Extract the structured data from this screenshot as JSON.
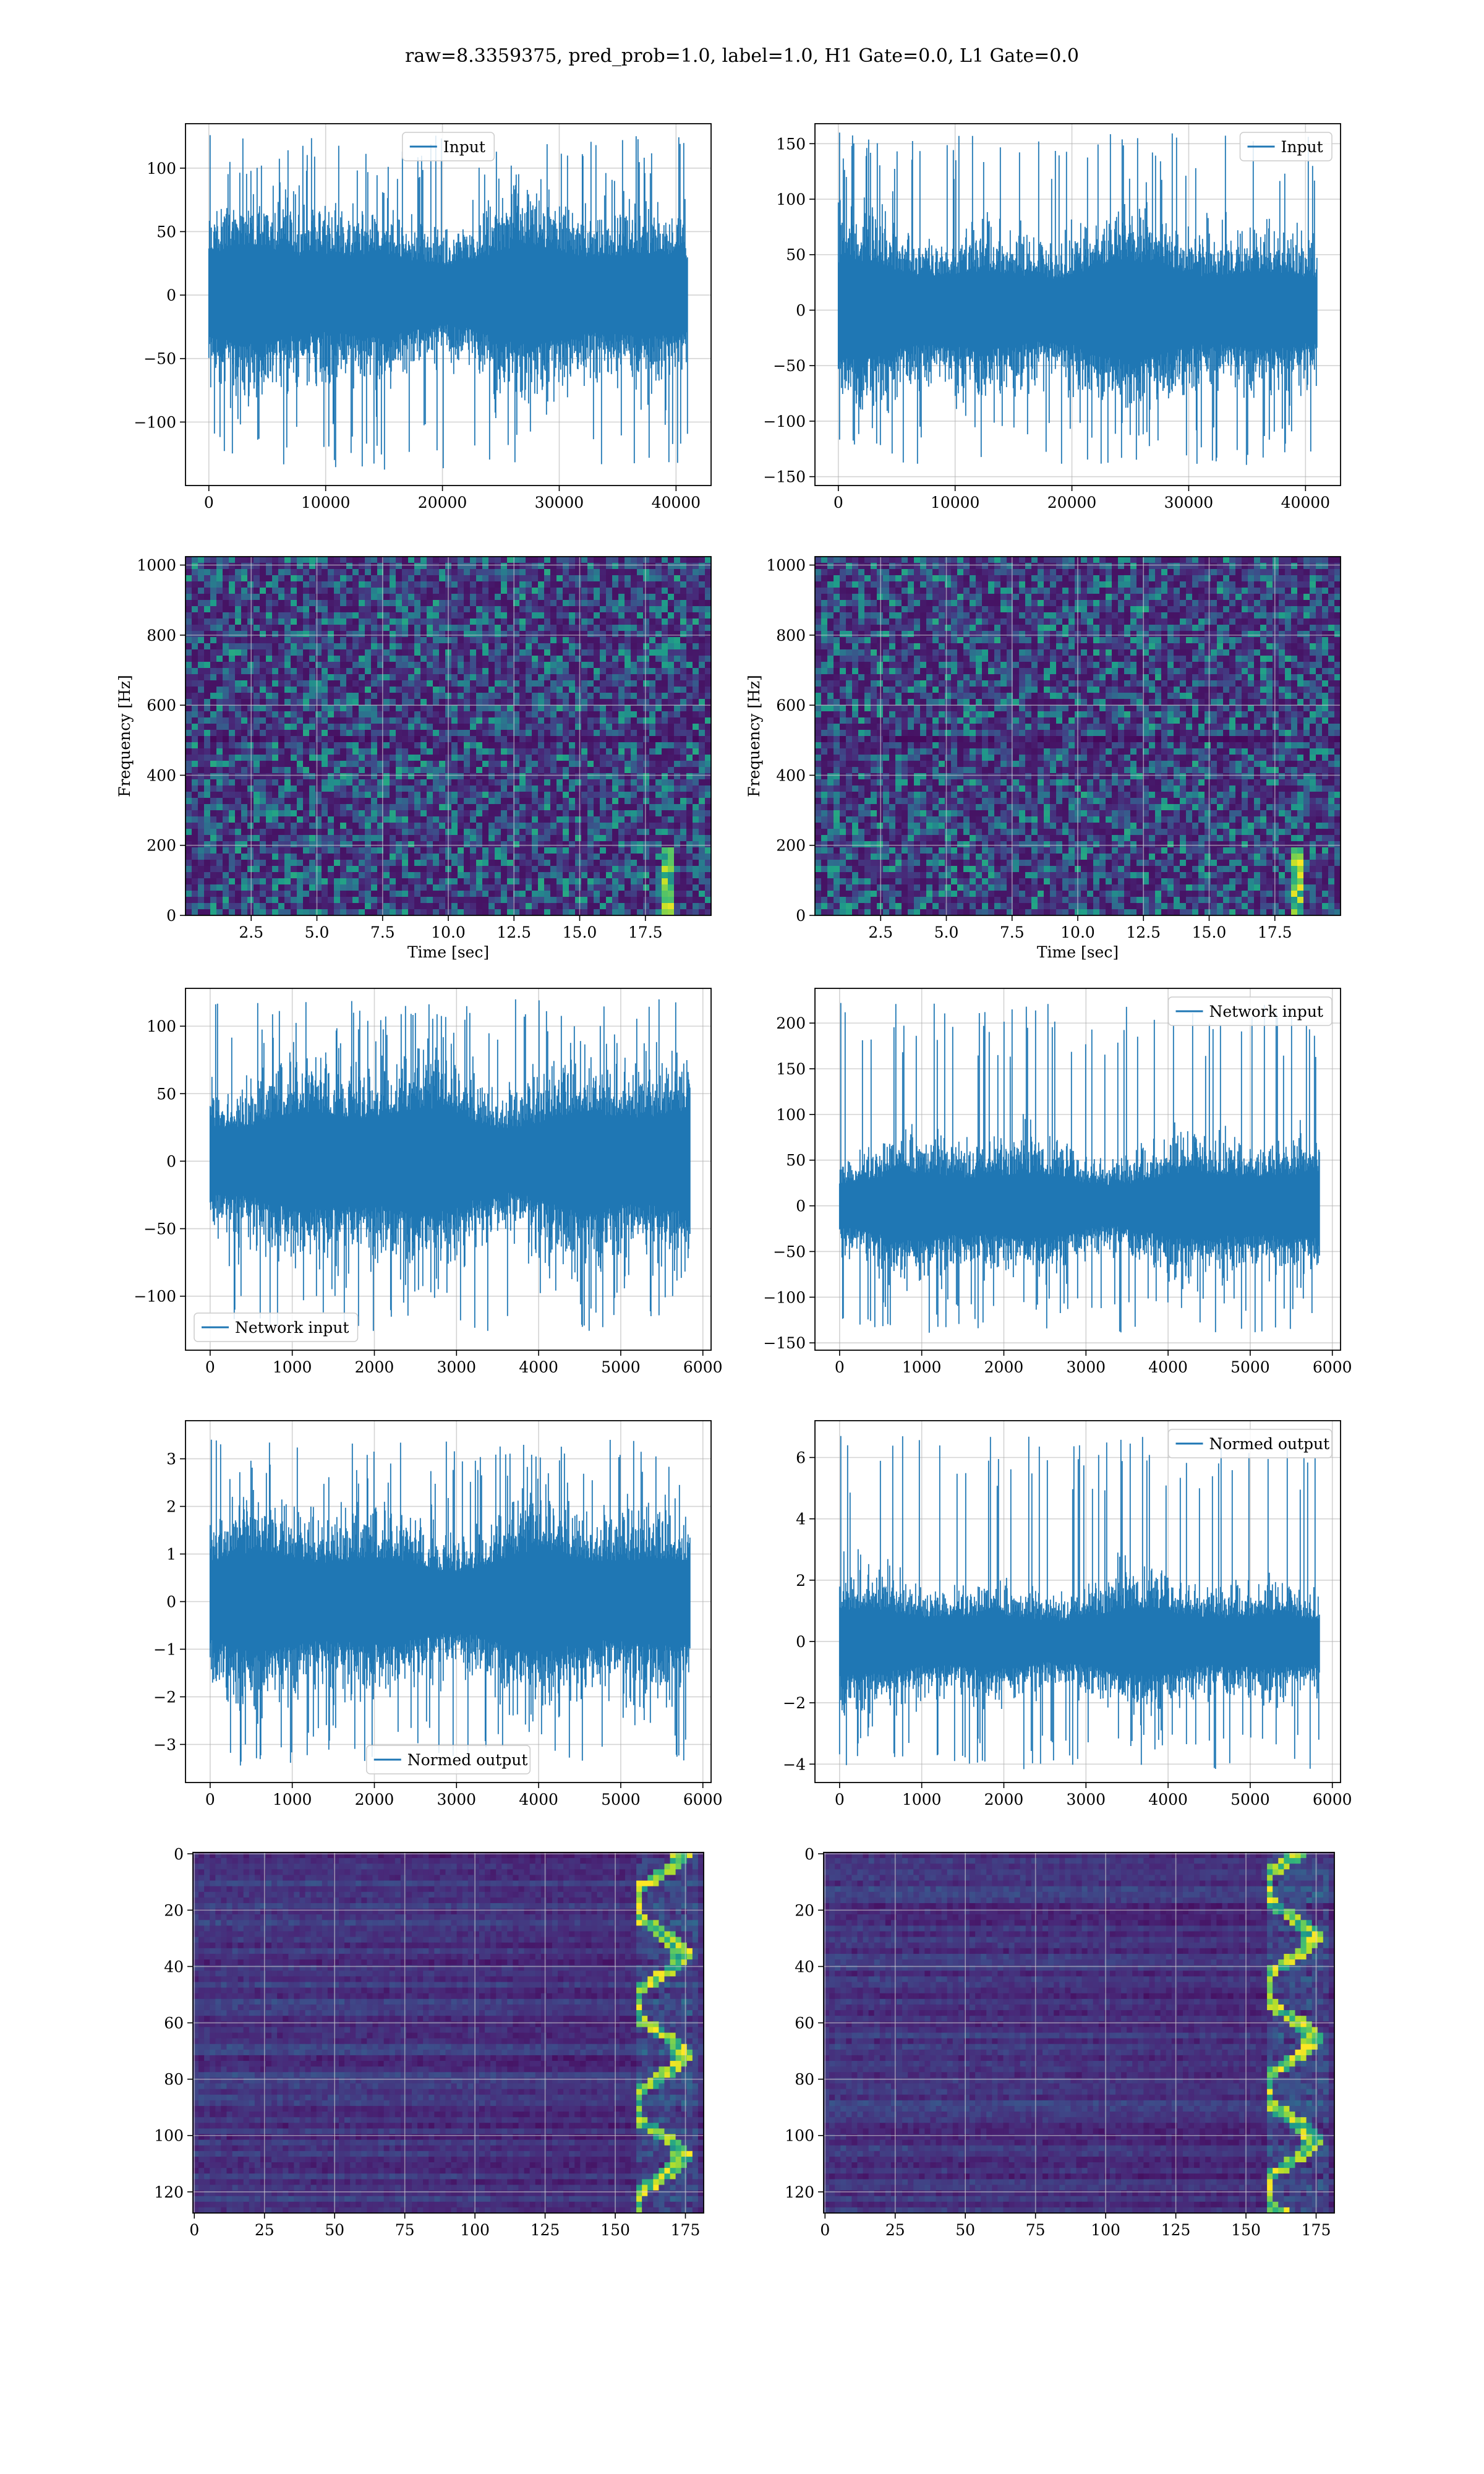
{
  "suptitle": "raw=8.3359375, pred_prob=1.0, label=1.0, H1 Gate=0.0, L1 Gate=0.0",
  "colors": {
    "series": "#1f77b4",
    "grid": "#b0b0b0",
    "spec_bg": "#440154"
  },
  "chart_data": [
    {
      "id": "h1-raw",
      "type": "line",
      "title": "",
      "xlabel": "",
      "ylabel": "",
      "legend": "top-center",
      "series": [
        {
          "name": "Input"
        }
      ],
      "xlim": [
        -2000,
        43000
      ],
      "ylim": [
        -150,
        135
      ],
      "xticks": [
        0,
        10000,
        20000,
        30000,
        40000
      ],
      "yticks": [
        -100,
        -50,
        0,
        50,
        100
      ],
      "n": 41000,
      "band": 40,
      "extremes": [
        -138,
        126
      ],
      "grid": true
    },
    {
      "id": "l1-raw",
      "type": "line",
      "title": "",
      "xlabel": "",
      "ylabel": "",
      "legend": "top-right",
      "series": [
        {
          "name": "Input"
        }
      ],
      "xlim": [
        -2000,
        43000
      ],
      "ylim": [
        -158,
        168
      ],
      "xticks": [
        0,
        10000,
        20000,
        30000,
        40000
      ],
      "yticks": [
        -150,
        -100,
        -50,
        0,
        50,
        100,
        150
      ],
      "n": 41000,
      "band": 45,
      "extremes": [
        -140,
        160
      ],
      "grid": true
    },
    {
      "id": "h1-spec",
      "type": "heatmap",
      "title": "",
      "xlabel": "Time [sec]",
      "ylabel": "Frequency [Hz]",
      "xlim": [
        0,
        20
      ],
      "ylim": [
        0,
        1024
      ],
      "xticks": [
        2.5,
        5.0,
        7.5,
        10.0,
        12.5,
        15.0,
        17.5
      ],
      "yticks": [
        0,
        200,
        400,
        600,
        800,
        1000
      ],
      "colormap": "viridis",
      "grid": true
    },
    {
      "id": "l1-spec",
      "type": "heatmap",
      "title": "",
      "xlabel": "Time [sec]",
      "ylabel": "Frequency [Hz]",
      "xlim": [
        0,
        20
      ],
      "ylim": [
        0,
        1024
      ],
      "xticks": [
        2.5,
        5.0,
        7.5,
        10.0,
        12.5,
        15.0,
        17.5
      ],
      "yticks": [
        0,
        200,
        400,
        600,
        800,
        1000
      ],
      "colormap": "viridis",
      "grid": true
    },
    {
      "id": "h1-net",
      "type": "line",
      "title": "",
      "xlabel": "",
      "ylabel": "",
      "legend": "bottom-left",
      "series": [
        {
          "name": "Network input"
        }
      ],
      "xlim": [
        -300,
        6100
      ],
      "ylim": [
        -140,
        128
      ],
      "xticks": [
        0,
        1000,
        2000,
        3000,
        4000,
        5000,
        6000
      ],
      "yticks": [
        -100,
        -50,
        0,
        50,
        100
      ],
      "n": 5840,
      "band": 42,
      "extremes": [
        -128,
        120
      ],
      "grid": true
    },
    {
      "id": "l1-net",
      "type": "line",
      "title": "",
      "xlabel": "",
      "ylabel": "",
      "legend": "top-right",
      "series": [
        {
          "name": "Network input"
        }
      ],
      "xlim": [
        -300,
        6100
      ],
      "ylim": [
        -158,
        238
      ],
      "xticks": [
        0,
        1000,
        2000,
        3000,
        4000,
        5000,
        6000
      ],
      "yticks": [
        -150,
        -100,
        -50,
        0,
        50,
        100,
        150,
        200
      ],
      "n": 5840,
      "band": 40,
      "extremes": [
        -140,
        222
      ],
      "grid": true
    },
    {
      "id": "h1-norm",
      "type": "line",
      "title": "",
      "xlabel": "",
      "ylabel": "",
      "legend": "bottom-center",
      "series": [
        {
          "name": "Normed output"
        }
      ],
      "xlim": [
        -300,
        6100
      ],
      "ylim": [
        -3.8,
        3.8
      ],
      "xticks": [
        0,
        1000,
        2000,
        3000,
        4000,
        5000,
        6000
      ],
      "yticks": [
        -3,
        -2,
        -1,
        0,
        1,
        2,
        3
      ],
      "n": 5840,
      "band": 1.1,
      "extremes": [
        -3.4,
        3.4
      ],
      "grid": true
    },
    {
      "id": "l1-norm",
      "type": "line",
      "title": "",
      "xlabel": "",
      "ylabel": "",
      "legend": "top-right",
      "series": [
        {
          "name": "Normed output"
        }
      ],
      "xlim": [
        -300,
        6100
      ],
      "ylim": [
        -4.6,
        7.2
      ],
      "xticks": [
        0,
        1000,
        2000,
        3000,
        4000,
        5000,
        6000
      ],
      "yticks": [
        -4,
        -2,
        0,
        2,
        4,
        6
      ],
      "n": 5840,
      "band": 1.1,
      "extremes": [
        -4.2,
        6.7
      ],
      "grid": true
    },
    {
      "id": "h1-img",
      "type": "heatmap",
      "title": "",
      "xlabel": "",
      "ylabel": "",
      "xlim": [
        -0.5,
        181.5
      ],
      "ylim": [
        127.5,
        -0.5
      ],
      "xticks": [
        0,
        25,
        50,
        75,
        100,
        125,
        150,
        175
      ],
      "yticks": [
        0,
        20,
        40,
        60,
        80,
        100,
        120
      ],
      "colormap": "viridis",
      "grid": true
    },
    {
      "id": "l1-img",
      "type": "heatmap",
      "title": "",
      "xlabel": "",
      "ylabel": "",
      "xlim": [
        -0.5,
        181.5
      ],
      "ylim": [
        127.5,
        -0.5
      ],
      "xticks": [
        0,
        25,
        50,
        75,
        100,
        125,
        150,
        175
      ],
      "yticks": [
        0,
        20,
        40,
        60,
        80,
        100,
        120
      ],
      "colormap": "viridis",
      "grid": true
    }
  ]
}
